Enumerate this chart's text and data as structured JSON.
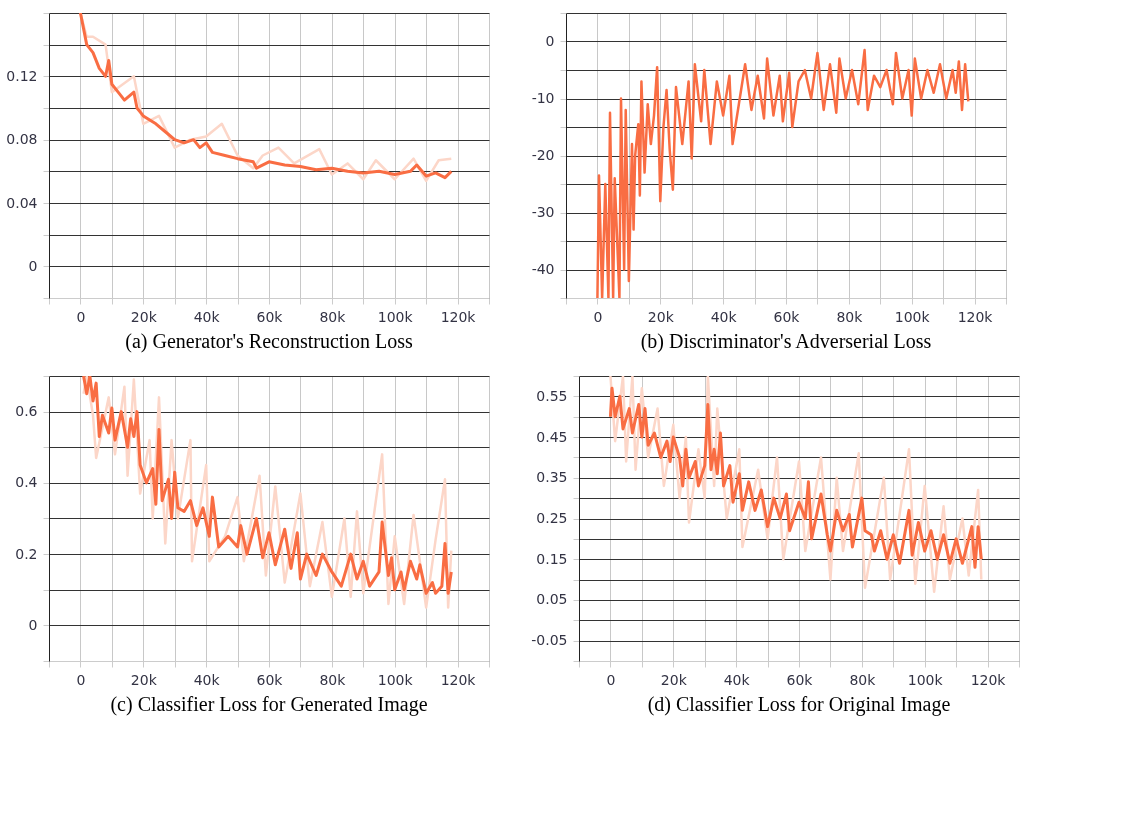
{
  "chart_data": [
    {
      "type": "line",
      "title": "(a) Generator's Reconstruction Loss",
      "grid": true,
      "legend": false,
      "xlim": [
        -10000,
        130000
      ],
      "xticks": [
        {
          "value": -10000,
          "label": null
        },
        0,
        {
          "value": 10000,
          "label": null
        },
        {
          "value": 20000,
          "label": "20k"
        },
        {
          "value": 30000,
          "label": null
        },
        {
          "value": 40000,
          "label": "40k"
        },
        {
          "value": 50000,
          "label": null
        },
        {
          "value": 60000,
          "label": "60k"
        },
        {
          "value": 70000,
          "label": null
        },
        {
          "value": 80000,
          "label": "80k"
        },
        {
          "value": 90000,
          "label": null
        },
        {
          "value": 100000,
          "label": "100k"
        },
        {
          "value": 110000,
          "label": null
        },
        {
          "value": 120000,
          "label": "120k"
        },
        {
          "value": 130000,
          "label": null
        }
      ],
      "ylim": [
        -0.02,
        0.16
      ],
      "yticks": [
        {
          "value": -0.02,
          "label": null
        },
        0,
        {
          "value": 0.02,
          "label": null
        },
        0.04,
        {
          "value": 0.06,
          "label": null
        },
        0.08,
        {
          "value": 0.1,
          "label": null
        },
        0.12,
        {
          "value": 0.14,
          "label": null
        },
        {
          "value": 0.16,
          "label": null
        }
      ],
      "series": [
        {
          "color": "#fcd6c8",
          "x": [
            0,
            2000,
            4000,
            8000,
            10000,
            17000,
            20000,
            25000,
            30000,
            35000,
            40000,
            45000,
            50000,
            55000,
            58000,
            63000,
            68000,
            76000,
            80000,
            85000,
            90000,
            94000,
            100000,
            106000,
            110000,
            114000,
            118000
          ],
          "values": [
            0.16,
            0.145,
            0.145,
            0.14,
            0.11,
            0.12,
            0.09,
            0.095,
            0.075,
            0.08,
            0.082,
            0.09,
            0.07,
            0.062,
            0.07,
            0.075,
            0.065,
            0.074,
            0.058,
            0.065,
            0.055,
            0.067,
            0.055,
            0.068,
            0.054,
            0.067,
            0.068
          ]
        },
        {
          "color": "#f96d43",
          "x": [
            0,
            1000,
            2000,
            4000,
            6000,
            8000,
            9000,
            10000,
            12000,
            14000,
            17000,
            18000,
            20000,
            24000,
            27000,
            30000,
            33000,
            36000,
            38000,
            40000,
            42000,
            46000,
            50000,
            55000,
            56000,
            60000,
            65000,
            70000,
            75000,
            80000,
            85000,
            90000,
            95000,
            100000,
            105000,
            107000,
            110000,
            113000,
            116000,
            118000
          ],
          "values": [
            0.16,
            0.15,
            0.14,
            0.135,
            0.125,
            0.12,
            0.13,
            0.115,
            0.11,
            0.105,
            0.11,
            0.1,
            0.095,
            0.09,
            0.085,
            0.08,
            0.078,
            0.08,
            0.075,
            0.078,
            0.072,
            0.07,
            0.068,
            0.066,
            0.062,
            0.066,
            0.064,
            0.063,
            0.061,
            0.062,
            0.06,
            0.059,
            0.06,
            0.058,
            0.06,
            0.064,
            0.057,
            0.059,
            0.056,
            0.06
          ]
        }
      ]
    },
    {
      "type": "line",
      "title": "(b) Discriminator's Adverserial Loss",
      "grid": true,
      "legend": false,
      "xlim": [
        -10000,
        130000
      ],
      "xticks": [
        {
          "value": -10000,
          "label": null
        },
        0,
        {
          "value": 10000,
          "label": null
        },
        {
          "value": 20000,
          "label": "20k"
        },
        {
          "value": 30000,
          "label": null
        },
        {
          "value": 40000,
          "label": "40k"
        },
        {
          "value": 50000,
          "label": null
        },
        {
          "value": 60000,
          "label": "60k"
        },
        {
          "value": 70000,
          "label": null
        },
        {
          "value": 80000,
          "label": "80k"
        },
        {
          "value": 90000,
          "label": null
        },
        {
          "value": 100000,
          "label": "100k"
        },
        {
          "value": 110000,
          "label": null
        },
        {
          "value": 120000,
          "label": "120k"
        },
        {
          "value": 130000,
          "label": null
        }
      ],
      "ylim": [
        -45,
        5
      ],
      "yticks": [
        {
          "value": -45,
          "label": null
        },
        -40,
        {
          "value": -35,
          "label": null
        },
        -30,
        {
          "value": -25,
          "label": null
        },
        -20,
        {
          "value": -15,
          "label": null
        },
        -10,
        {
          "value": -5,
          "label": null
        },
        0,
        {
          "value": 5,
          "label": null
        }
      ],
      "series": [
        {
          "color": "#f96d43",
          "x": [
            0,
            500,
            1500,
            2500,
            3500,
            4000,
            5000,
            5500,
            7000,
            7500,
            8500,
            9000,
            10000,
            11000,
            11500,
            12000,
            13000,
            13500,
            14000,
            15000,
            16000,
            17000,
            18000,
            19000,
            20000,
            21000,
            22000,
            23000,
            24000,
            25000,
            27000,
            29000,
            30000,
            31000,
            33000,
            34000,
            36000,
            38000,
            40000,
            42000,
            43000,
            45000,
            47000,
            49000,
            51000,
            53000,
            54000,
            56000,
            58000,
            59000,
            61000,
            62000,
            64000,
            66000,
            68000,
            70000,
            72000,
            74000,
            76000,
            77000,
            79000,
            81000,
            83000,
            85000,
            86000,
            88000,
            90000,
            92000,
            94000,
            95000,
            97000,
            99000,
            100000,
            101000,
            103000,
            105000,
            107000,
            109000,
            111000,
            113000,
            114000,
            115000,
            116000,
            117000,
            118000
          ],
          "values": [
            -45,
            -23.5,
            -45,
            -25,
            -45,
            -12.5,
            -45,
            -24,
            -45,
            -10,
            -40,
            -12,
            -42,
            -18,
            -33,
            -20,
            -14.5,
            -27,
            -7,
            -23,
            -11,
            -18,
            -13,
            -4.5,
            -28,
            -15,
            -8.5,
            -19,
            -26,
            -8,
            -18,
            -7,
            -20.5,
            -4,
            -14,
            -5,
            -18,
            -7,
            -13,
            -6,
            -18,
            -11,
            -4,
            -12,
            -6,
            -13.5,
            -3,
            -13,
            -6,
            -14,
            -5.5,
            -15,
            -7,
            -5,
            -10,
            -2,
            -12,
            -4,
            -12.5,
            -3,
            -10,
            -5,
            -11,
            -1.5,
            -12,
            -6,
            -8,
            -5,
            -11,
            -2,
            -10,
            -5,
            -13,
            -3,
            -10,
            -5,
            -9,
            -4,
            -10,
            -5,
            -9,
            -3.5,
            -12,
            -4,
            -10.5
          ]
        }
      ]
    },
    {
      "type": "line",
      "title": "(c) Classifier Loss for Generated Image",
      "grid": true,
      "legend": false,
      "xlim": [
        -10000,
        130000
      ],
      "xticks": [
        {
          "value": -10000,
          "label": null
        },
        0,
        {
          "value": 10000,
          "label": null
        },
        {
          "value": 20000,
          "label": "20k"
        },
        {
          "value": 30000,
          "label": null
        },
        {
          "value": 40000,
          "label": "40k"
        },
        {
          "value": 50000,
          "label": null
        },
        {
          "value": 60000,
          "label": "60k"
        },
        {
          "value": 70000,
          "label": null
        },
        {
          "value": 80000,
          "label": "80k"
        },
        {
          "value": 90000,
          "label": null
        },
        {
          "value": 100000,
          "label": "100k"
        },
        {
          "value": 110000,
          "label": null
        },
        {
          "value": 120000,
          "label": "120k"
        },
        {
          "value": 130000,
          "label": null
        }
      ],
      "ylim": [
        -0.1,
        0.7
      ],
      "yticks": [
        {
          "value": -0.1,
          "label": null
        },
        0,
        {
          "value": 0.1,
          "label": null
        },
        0.2,
        {
          "value": 0.3,
          "label": null
        },
        0.4,
        {
          "value": 0.5,
          "label": null
        },
        0.6,
        {
          "value": 0.7,
          "label": null
        }
      ],
      "series": [
        {
          "color": "#fcd6c8",
          "x": [
            1000,
            2000,
            4000,
            5000,
            9000,
            11000,
            14000,
            15000,
            17000,
            19000,
            22000,
            23000,
            25000,
            27000,
            29000,
            31000,
            35000,
            35500,
            40000,
            41000,
            46000,
            50000,
            52000,
            57000,
            59000,
            62000,
            65000,
            70000,
            73000,
            77000,
            80000,
            84000,
            86000,
            88000,
            90000,
            96000,
            98000,
            100000,
            103000,
            106000,
            110000,
            113000,
            116000,
            117000,
            118000
          ],
          "values": [
            0.65,
            0.7,
            0.59,
            0.47,
            0.64,
            0.48,
            0.67,
            0.42,
            0.69,
            0.37,
            0.52,
            0.3,
            0.64,
            0.23,
            0.52,
            0.3,
            0.52,
            0.18,
            0.45,
            0.18,
            0.25,
            0.36,
            0.18,
            0.42,
            0.14,
            0.39,
            0.12,
            0.37,
            0.11,
            0.29,
            0.08,
            0.3,
            0.08,
            0.32,
            0.09,
            0.48,
            0.06,
            0.25,
            0.06,
            0.31,
            0.05,
            0.24,
            0.41,
            0.05,
            0.21
          ]
        },
        {
          "color": "#f96d43",
          "x": [
            1000,
            2000,
            3000,
            4000,
            5000,
            6000,
            7000,
            9000,
            10000,
            11000,
            13000,
            15000,
            16000,
            17000,
            18000,
            19000,
            21000,
            23000,
            24000,
            25000,
            26000,
            28000,
            29000,
            30000,
            31000,
            33000,
            35000,
            37000,
            39000,
            41000,
            42000,
            44000,
            47000,
            50000,
            51000,
            53000,
            56000,
            58000,
            60000,
            62000,
            65000,
            67000,
            69000,
            70000,
            72000,
            75000,
            77000,
            80000,
            83000,
            86000,
            88000,
            90000,
            92000,
            95000,
            96000,
            98000,
            99000,
            100000,
            102000,
            103000,
            105000,
            107000,
            108000,
            110000,
            112000,
            113000,
            115000,
            116000,
            117000,
            118000
          ],
          "values": [
            0.7,
            0.65,
            0.7,
            0.63,
            0.68,
            0.53,
            0.59,
            0.54,
            0.61,
            0.52,
            0.6,
            0.5,
            0.58,
            0.53,
            0.6,
            0.45,
            0.4,
            0.44,
            0.34,
            0.55,
            0.35,
            0.41,
            0.3,
            0.43,
            0.33,
            0.32,
            0.35,
            0.28,
            0.33,
            0.25,
            0.36,
            0.22,
            0.25,
            0.22,
            0.28,
            0.2,
            0.3,
            0.19,
            0.26,
            0.17,
            0.27,
            0.16,
            0.26,
            0.13,
            0.2,
            0.14,
            0.2,
            0.15,
            0.11,
            0.2,
            0.13,
            0.18,
            0.11,
            0.15,
            0.29,
            0.14,
            0.19,
            0.1,
            0.15,
            0.1,
            0.18,
            0.13,
            0.17,
            0.09,
            0.12,
            0.09,
            0.11,
            0.23,
            0.09,
            0.15
          ]
        }
      ]
    },
    {
      "type": "line",
      "title": "(d) Classifier Loss for Original Image",
      "grid": true,
      "legend": false,
      "xlim": [
        -10000,
        130000
      ],
      "xticks": [
        {
          "value": -10000,
          "label": null
        },
        0,
        {
          "value": 10000,
          "label": null
        },
        {
          "value": 20000,
          "label": "20k"
        },
        {
          "value": 30000,
          "label": null
        },
        {
          "value": 40000,
          "label": "40k"
        },
        {
          "value": 50000,
          "label": null
        },
        {
          "value": 60000,
          "label": "60k"
        },
        {
          "value": 70000,
          "label": null
        },
        {
          "value": 80000,
          "label": "80k"
        },
        {
          "value": 90000,
          "label": null
        },
        {
          "value": 100000,
          "label": "100k"
        },
        {
          "value": 110000,
          "label": null
        },
        {
          "value": 120000,
          "label": "120k"
        },
        {
          "value": 130000,
          "label": null
        }
      ],
      "ylim": [
        -0.1,
        0.6
      ],
      "yticks": [
        {
          "value": -0.1,
          "label": null
        },
        -0.05,
        {
          "value": 0,
          "label": null
        },
        0.05,
        {
          "value": 0.1,
          "label": null
        },
        0.15,
        {
          "value": 0.2,
          "label": null
        },
        0.25,
        {
          "value": 0.3,
          "label": null
        },
        0.35,
        {
          "value": 0.4,
          "label": null
        },
        0.45,
        {
          "value": 0.5,
          "label": null
        },
        0.55,
        {
          "value": 0.6,
          "label": null
        }
      ],
      "series": [
        {
          "color": "#fcd6c8",
          "x": [
            0,
            1500,
            4000,
            5000,
            7000,
            8000,
            10000,
            12000,
            15000,
            17000,
            20000,
            22000,
            24000,
            25000,
            28000,
            30000,
            31000,
            33000,
            34000,
            37000,
            41000,
            42000,
            47000,
            50000,
            53000,
            55000,
            60000,
            62000,
            67000,
            70000,
            72000,
            74000,
            79000,
            81000,
            87000,
            89000,
            95000,
            97000,
            100000,
            103000,
            106000,
            108000,
            112000,
            114000,
            117000,
            118000
          ],
          "values": [
            0.6,
            0.44,
            0.6,
            0.39,
            0.6,
            0.37,
            0.57,
            0.4,
            0.52,
            0.33,
            0.48,
            0.3,
            0.45,
            0.24,
            0.42,
            0.3,
            0.6,
            0.33,
            0.52,
            0.25,
            0.42,
            0.18,
            0.37,
            0.2,
            0.4,
            0.15,
            0.39,
            0.17,
            0.4,
            0.1,
            0.35,
            0.17,
            0.41,
            0.08,
            0.35,
            0.1,
            0.42,
            0.09,
            0.33,
            0.07,
            0.28,
            0.1,
            0.25,
            0.11,
            0.32,
            0.1
          ]
        },
        {
          "color": "#f96d43",
          "x": [
            0,
            500,
            1500,
            3000,
            4000,
            6000,
            7000,
            9000,
            10000,
            11000,
            12000,
            14000,
            16000,
            18000,
            19000,
            20000,
            22000,
            23000,
            24000,
            25000,
            27000,
            28000,
            30000,
            31000,
            32000,
            33000,
            34000,
            35000,
            36000,
            38000,
            39000,
            41000,
            42000,
            44000,
            46000,
            48000,
            50000,
            52000,
            54000,
            56000,
            57000,
            60000,
            62000,
            63000,
            64000,
            67000,
            69000,
            70000,
            72000,
            74000,
            76000,
            77000,
            80000,
            81000,
            83000,
            84000,
            86000,
            88000,
            90000,
            92000,
            95000,
            96000,
            98000,
            100000,
            102000,
            104000,
            106000,
            108000,
            110000,
            112000,
            115000,
            116000,
            117000,
            118000
          ],
          "values": [
            0.5,
            0.57,
            0.5,
            0.55,
            0.47,
            0.52,
            0.46,
            0.53,
            0.45,
            0.52,
            0.43,
            0.46,
            0.4,
            0.44,
            0.39,
            0.45,
            0.4,
            0.33,
            0.42,
            0.35,
            0.39,
            0.33,
            0.38,
            0.53,
            0.37,
            0.42,
            0.36,
            0.46,
            0.33,
            0.38,
            0.29,
            0.36,
            0.27,
            0.34,
            0.27,
            0.32,
            0.23,
            0.3,
            0.25,
            0.31,
            0.22,
            0.29,
            0.25,
            0.34,
            0.2,
            0.31,
            0.21,
            0.17,
            0.27,
            0.22,
            0.26,
            0.18,
            0.3,
            0.22,
            0.21,
            0.17,
            0.22,
            0.15,
            0.21,
            0.14,
            0.27,
            0.16,
            0.24,
            0.17,
            0.22,
            0.15,
            0.21,
            0.14,
            0.2,
            0.14,
            0.23,
            0.13,
            0.23,
            0.15
          ]
        }
      ]
    }
  ]
}
